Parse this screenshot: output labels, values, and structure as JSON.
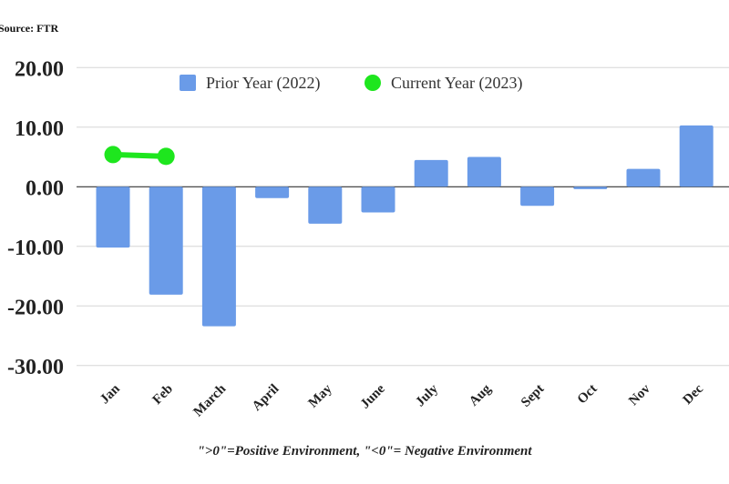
{
  "source": "Source: FTR",
  "footnote": "\">0\"=Positive Environment, \"<0\"= Negative Environment",
  "chart_data": {
    "type": "bar",
    "title": "",
    "xlabel": "",
    "ylabel": "",
    "categories": [
      "Jan",
      "Feb",
      "March",
      "April",
      "May",
      "June",
      "July",
      "Aug",
      "Sept",
      "Oct",
      "Nov",
      "Dec"
    ],
    "ylim": [
      -30,
      20
    ],
    "yticks": [
      "20.00",
      "10.00",
      "0.00",
      "-10.00",
      "-20.00",
      "-30.00"
    ],
    "grid": true,
    "legend_position": "top",
    "series": [
      {
        "name": "Prior Year (2022)",
        "type": "bar",
        "color": "#6a9be8",
        "values": [
          -10.2,
          -18.1,
          -23.4,
          -1.9,
          -6.2,
          -4.3,
          4.5,
          5.0,
          -3.2,
          -0.4,
          3.0,
          10.3
        ]
      },
      {
        "name": "Current Year (2023)",
        "type": "line",
        "color": "#1ee61e",
        "values": [
          5.4,
          5.1,
          null,
          null,
          null,
          null,
          null,
          null,
          null,
          null,
          null,
          null
        ]
      }
    ]
  }
}
